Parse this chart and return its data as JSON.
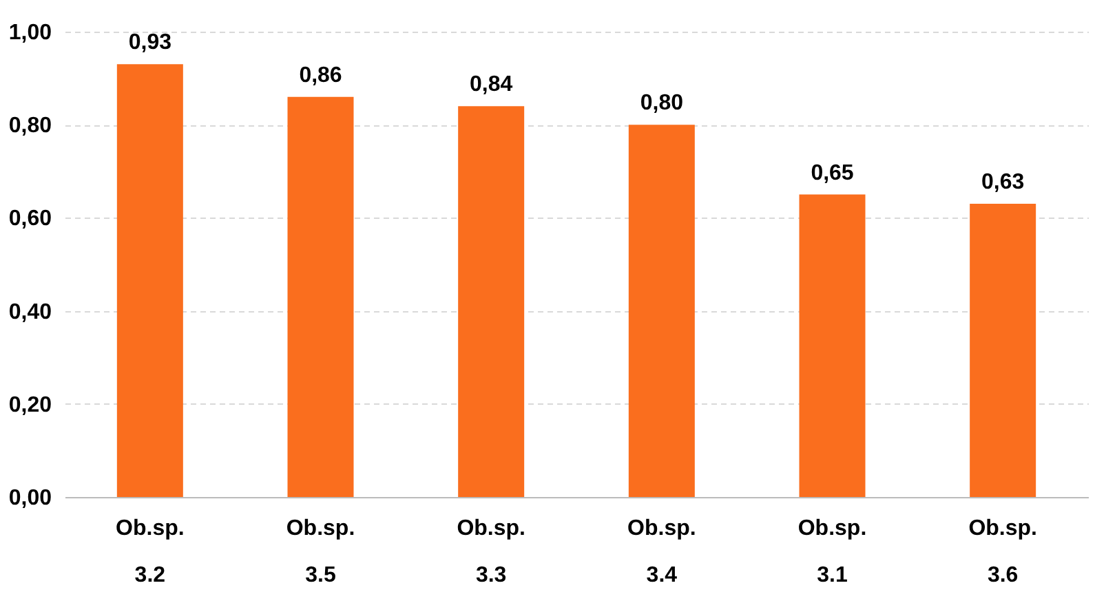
{
  "chart_data": {
    "type": "bar",
    "categories": [
      "Ob.sp. 3.2",
      "Ob.sp. 3.5",
      "Ob.sp. 3.3",
      "Ob.sp. 3.4",
      "Ob.sp. 3.1",
      "Ob.sp. 3.6"
    ],
    "values": [
      0.93,
      0.86,
      0.84,
      0.8,
      0.65,
      0.63
    ],
    "value_labels": [
      "0,93",
      "0,86",
      "0,84",
      "0,80",
      "0,65",
      "0,63"
    ],
    "color": "#fa6e1e",
    "ylim": [
      0,
      1
    ],
    "yticks": [
      {
        "value": 0,
        "label": "0,00"
      },
      {
        "value": 0.2,
        "label": "0,20"
      },
      {
        "value": 0.4,
        "label": "0,40"
      },
      {
        "value": 0.6,
        "label": "0,60"
      },
      {
        "value": 0.8,
        "label": "0,80"
      },
      {
        "value": 1,
        "label": "1,00"
      }
    ],
    "grid": "y"
  }
}
